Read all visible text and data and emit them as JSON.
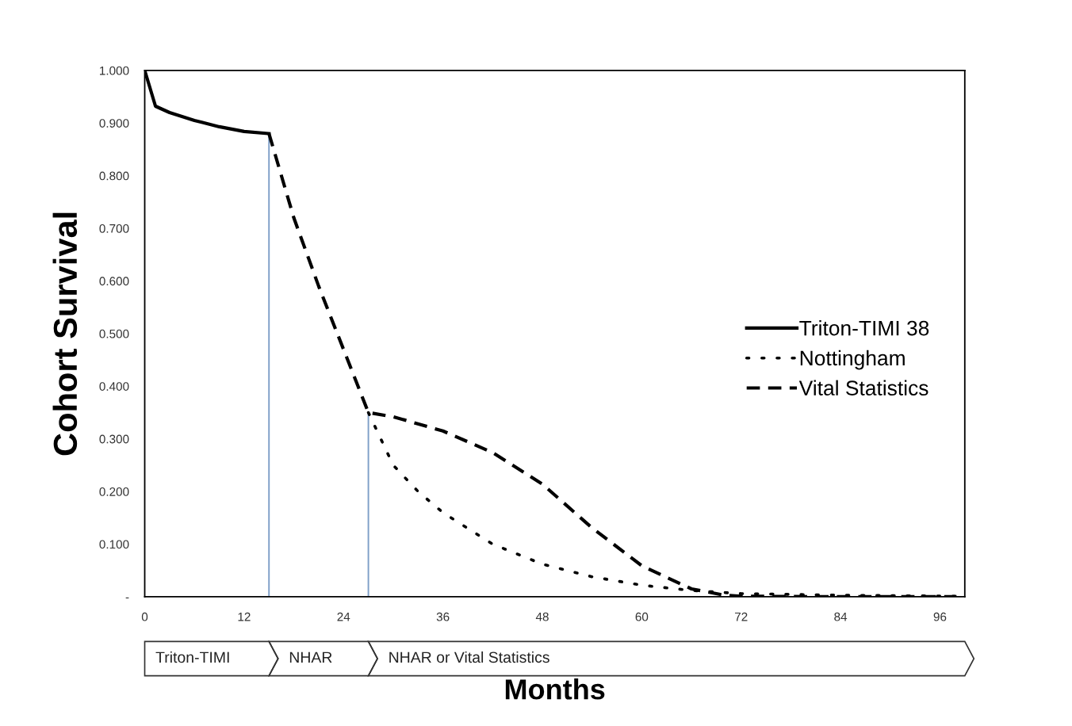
{
  "chart_data": {
    "type": "line",
    "xlabel": "Months",
    "ylabel": "Cohort Survival",
    "xlim": [
      0,
      99
    ],
    "xticks": [
      0,
      12,
      24,
      36,
      48,
      60,
      72,
      84,
      96
    ],
    "ylim": [
      0,
      1.0
    ],
    "yticks": [
      {
        "value": 0,
        "label": "-"
      },
      {
        "value": 0.1,
        "label": "0.100"
      },
      {
        "value": 0.2,
        "label": "0.200"
      },
      {
        "value": 0.3,
        "label": "0.300"
      },
      {
        "value": 0.4,
        "label": "0.400"
      },
      {
        "value": 0.5,
        "label": "0.500"
      },
      {
        "value": 0.6,
        "label": "0.600"
      },
      {
        "value": 0.7,
        "label": "0.700"
      },
      {
        "value": 0.8,
        "label": "0.800"
      },
      {
        "value": 0.9,
        "label": "0.900"
      },
      {
        "value": 1.0,
        "label": "1.000"
      }
    ],
    "grid": false,
    "legend": "right",
    "marker": "none",
    "series": [
      {
        "name": "Triton-TIMI 38",
        "color": "#000000",
        "line_style": "solid",
        "x": [
          0,
          1.3,
          3,
          6,
          9,
          12,
          15
        ],
        "values": [
          1.0,
          0.932,
          0.92,
          0.905,
          0.893,
          0.884,
          0.88
        ]
      },
      {
        "name": "Nottingham",
        "color": "#000000",
        "line_style": "dotted",
        "x": [
          27,
          30,
          33,
          36,
          42,
          48,
          54,
          60,
          66,
          72,
          84,
          98
        ],
        "values": [
          0.35,
          0.25,
          0.2,
          0.16,
          0.1,
          0.062,
          0.038,
          0.022,
          0.012,
          0.006,
          0.003,
          0.001
        ]
      },
      {
        "name": "Vital Statistics",
        "color": "#000000",
        "line_style": "dashed",
        "x": [
          15,
          18,
          21,
          24,
          27,
          30,
          36,
          42,
          48,
          54,
          60,
          66,
          70,
          72,
          84,
          98
        ],
        "values": [
          0.88,
          0.72,
          0.59,
          0.47,
          0.35,
          0.342,
          0.315,
          0.274,
          0.214,
          0.131,
          0.059,
          0.015,
          0.003,
          0.001,
          0,
          0
        ]
      }
    ],
    "ref_lines": [
      {
        "axis": "x",
        "value": 15,
        "color": "#7f9fc8"
      },
      {
        "axis": "x",
        "value": 27,
        "color": "#7f9fc8"
      }
    ],
    "annotations": [
      "Triton-TIMI",
      "NHAR",
      "NHAR or Vital Statistics"
    ]
  }
}
